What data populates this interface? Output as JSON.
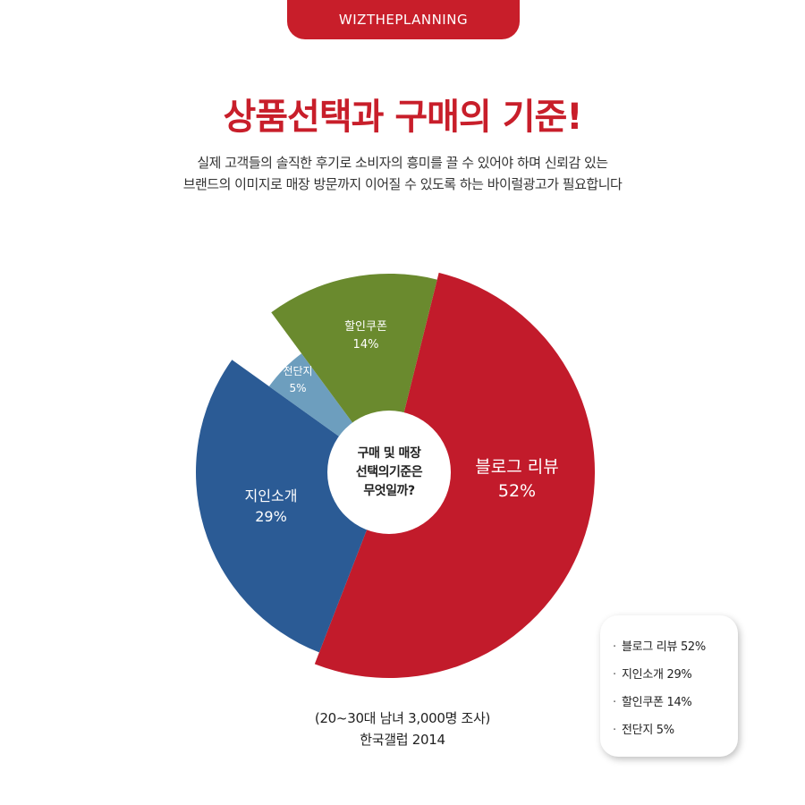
{
  "brand": "WIZTHEPLANNING",
  "title": "상품선택과 구매의 기준!",
  "subtitle": {
    "line1": "실제 고객들의 솔직한 후기로 소비자의 흥미를 끌 수 있어야 하며 신뢰감 있는",
    "line2": "브랜드의 이미지로 매장 방문까지 이어질 수 있도록 하는 바이럴광고가 필요합니다"
  },
  "center": {
    "line1": "구매 및 매장",
    "line2": "선택의기준은",
    "line3": "무엇일까?"
  },
  "chart_data": {
    "type": "pie",
    "title": "상품선택과 구매의 기준!",
    "slices": [
      {
        "label": "블로그 리뷰",
        "value": 52,
        "display": "52%",
        "color": "#c21b2b"
      },
      {
        "label": "지인소개",
        "value": 29,
        "display": "29%",
        "color": "#2b5b95"
      },
      {
        "label": "전단지",
        "value": 5,
        "display": "5%",
        "color": "#6d9ebe"
      },
      {
        "label": "할인쿠폰",
        "value": 14,
        "display": "14%",
        "color": "#6a8a2e"
      }
    ],
    "legend": {
      "placement": "bottom-right",
      "items": [
        "블로그 리뷰 52%",
        "지인소개 29%",
        "할인쿠폰 14%",
        "전단지 5%"
      ]
    }
  },
  "source": {
    "line1": "(20~30대 남녀 3,000명 조사)",
    "line2": "한국갤럽 2014"
  },
  "colors": {
    "brand_red": "#c81e2a"
  }
}
